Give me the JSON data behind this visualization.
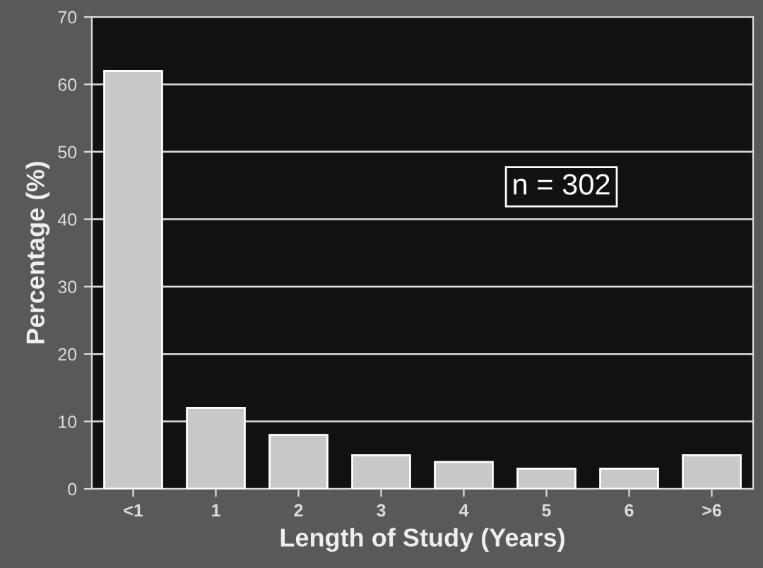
{
  "chart_data": {
    "type": "bar",
    "xlabel": "Length of Study (Years)",
    "ylabel": "Percentage (%)",
    "categories": [
      "<1",
      "1",
      "2",
      "3",
      "4",
      "5",
      "6",
      ">6"
    ],
    "values": [
      62,
      12,
      8,
      5,
      4,
      3,
      3,
      5
    ],
    "color": "#c8c8c8",
    "ylim": [
      0,
      70
    ],
    "yticks": [
      0,
      10,
      20,
      30,
      40,
      50,
      60,
      70
    ],
    "grid": "y",
    "annotations": [
      "n = 302"
    ]
  }
}
